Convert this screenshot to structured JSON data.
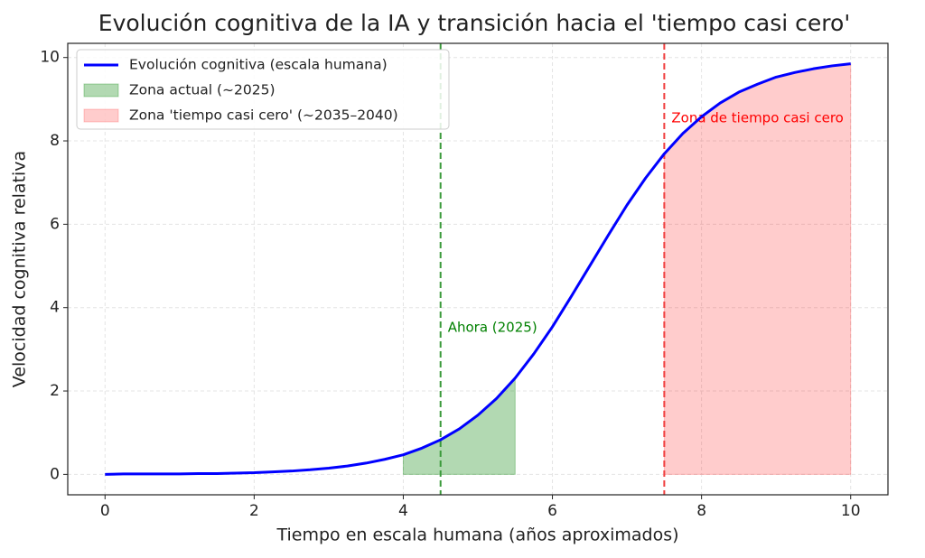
{
  "chart_data": {
    "type": "line",
    "title": "Evolución cognitiva de la IA y transición hacia el 'tiempo casi cero'",
    "x_label": "Tiempo en escala humana (años aproximados)",
    "y_label": "Velocidad cognitiva relativa",
    "x": [
      0,
      0.25,
      0.5,
      0.75,
      1,
      1.25,
      1.5,
      1.75,
      2,
      2.25,
      2.5,
      2.75,
      3,
      3.25,
      3.5,
      3.75,
      4,
      4.25,
      4.5,
      4.75,
      5,
      5.25,
      5.5,
      5.75,
      6,
      6.25,
      6.5,
      6.75,
      7,
      7.25,
      7.5,
      7.75,
      8,
      8.25,
      8.5,
      8.75,
      9,
      9.25,
      9.5,
      9.75,
      10
    ],
    "series": [
      {
        "name": "Evolución cognitiva (escala humana)",
        "color": "#0000ff",
        "values": [
          0.0,
          0.01,
          0.01,
          0.01,
          0.01,
          0.02,
          0.02,
          0.03,
          0.04,
          0.06,
          0.08,
          0.11,
          0.15,
          0.2,
          0.27,
          0.36,
          0.47,
          0.63,
          0.83,
          1.09,
          1.42,
          1.82,
          2.31,
          2.89,
          3.54,
          4.26,
          5.0,
          5.74,
          6.46,
          7.11,
          7.69,
          8.18,
          8.58,
          8.91,
          9.17,
          9.36,
          9.53,
          9.64,
          9.73,
          9.8,
          9.85
        ]
      }
    ],
    "areas": [
      {
        "name": "Zona actual (~2025)",
        "color": "#008000",
        "x": [
          4,
          5.5
        ]
      },
      {
        "name": "Zona 'tiempo casi cero' (~2035–2040)",
        "color": "#ff0000",
        "x": [
          7.5,
          10
        ]
      }
    ],
    "vlines": [
      {
        "x": 4.5,
        "color": "#3a9a3a",
        "label": "Ahora (2025)",
        "label_color": "#008000"
      },
      {
        "x": 7.5,
        "color": "#f04040",
        "label": "Zona de tiempo casi cero",
        "label_color": "#ff0000"
      }
    ],
    "xlim": [
      -0.5,
      10.5
    ],
    "xticks": [
      0,
      2,
      4,
      6,
      8,
      10
    ],
    "ylim": [
      -0.49,
      10.34
    ],
    "yticks": [
      0,
      2,
      4,
      6,
      8,
      10
    ],
    "grid": true,
    "legend": "upper-left"
  }
}
